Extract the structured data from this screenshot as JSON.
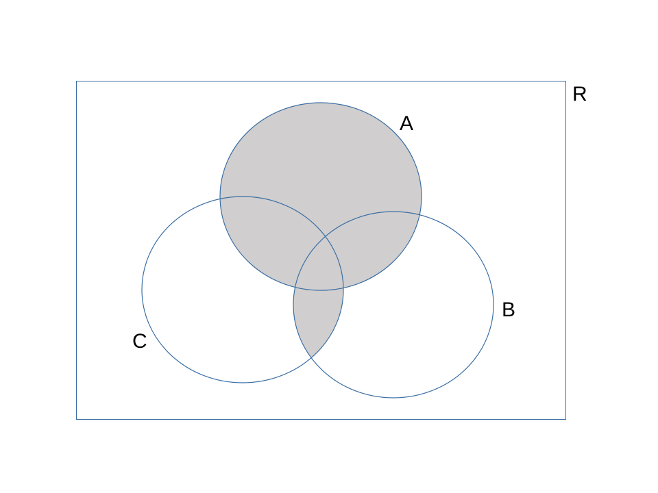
{
  "diagram": {
    "universe_label": "R",
    "sets": [
      {
        "id": "A",
        "label": "A"
      },
      {
        "id": "B",
        "label": "B"
      },
      {
        "id": "C",
        "label": "C"
      }
    ],
    "shaded_region": "A ∪ (B ∩ C)",
    "colors": {
      "stroke": "#3A6EA5",
      "shade": "#D0CECE",
      "text": "#000000",
      "background": "#FFFFFF"
    }
  }
}
